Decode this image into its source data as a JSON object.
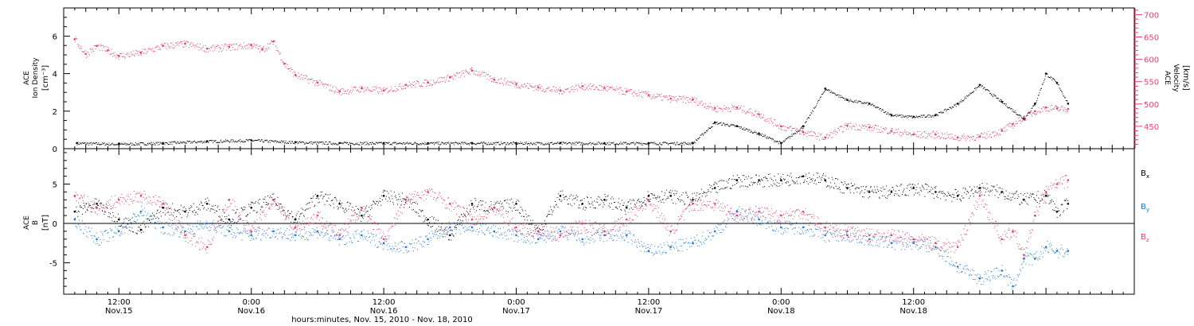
{
  "chart_data": [
    {
      "panel": "plasma",
      "type": "scatter",
      "x_unit": "hours since Nov.15 00:00 UTC",
      "ylabel_line1": "ACE",
      "ylabel_line2": "Ion Density",
      "ylabel_unit": "[cm⁻³]",
      "ylim": [
        0,
        7.5
      ],
      "yticks": [
        "0",
        "2",
        "4",
        "6"
      ],
      "y2label_line1": "ACE",
      "y2label_line2": "Velocity",
      "y2label_unit": "[km/s]",
      "y2lim": [
        400,
        715
      ],
      "y2ticks": [
        "450",
        "500",
        "550",
        "600",
        "650",
        "700"
      ],
      "series": [
        {
          "name": "Ion Density",
          "color": "#000000",
          "axis": "left",
          "x": [
            8.2,
            12,
            16,
            20,
            24,
            28,
            32,
            36,
            40,
            44,
            48,
            52,
            56,
            60,
            64,
            66,
            68,
            70,
            72,
            74,
            76,
            78,
            80,
            82,
            84,
            86,
            88,
            90,
            92,
            94,
            95,
            96,
            97,
            98
          ],
          "y": [
            0.3,
            0.25,
            0.3,
            0.4,
            0.45,
            0.35,
            0.3,
            0.3,
            0.3,
            0.3,
            0.3,
            0.3,
            0.3,
            0.3,
            0.3,
            1.4,
            1.2,
            0.8,
            0.3,
            1.2,
            3.2,
            2.6,
            2.4,
            1.8,
            1.7,
            1.8,
            2.4,
            3.4,
            2.5,
            1.6,
            2.4,
            4.0,
            3.5,
            2.4
          ]
        },
        {
          "name": "Velocity",
          "color": "#e83e6c",
          "axis": "right",
          "x": [
            8,
            9,
            10,
            11,
            12,
            14,
            16,
            18,
            20,
            22,
            24,
            25,
            26,
            27,
            28,
            30,
            32,
            34,
            36,
            38,
            40,
            42,
            44,
            46,
            48,
            50,
            52,
            54,
            56,
            58,
            60,
            62,
            64,
            66,
            68,
            70,
            72,
            74,
            76,
            78,
            80,
            82,
            84,
            86,
            88,
            90,
            92,
            93,
            94,
            95,
            96,
            97,
            98
          ],
          "y": [
            645,
            612,
            630,
            620,
            608,
            615,
            630,
            635,
            624,
            628,
            632,
            622,
            640,
            590,
            565,
            548,
            528,
            535,
            530,
            543,
            548,
            560,
            575,
            555,
            545,
            537,
            530,
            540,
            536,
            528,
            520,
            512,
            510,
            490,
            492,
            477,
            450,
            437,
            425,
            452,
            448,
            440,
            432,
            432,
            425,
            427,
            440,
            455,
            470,
            484,
            492,
            490,
            489
          ]
        }
      ]
    },
    {
      "panel": "magnetic-field",
      "type": "scatter",
      "x_unit": "hours since Nov.15 00:00 UTC",
      "ylabel_line1": "ACE",
      "ylabel_line2": "B",
      "ylabel_unit": "[nT]",
      "ylim": [
        -9,
        9.5
      ],
      "yticks": [
        "-5",
        "0",
        "5"
      ],
      "series": [
        {
          "name": "B",
          "subscript": "x",
          "color": "#000000",
          "x": [
            8,
            10,
            12,
            14,
            16,
            18,
            20,
            22,
            24,
            26,
            28,
            30,
            32,
            34,
            36,
            38,
            40,
            42,
            44,
            46,
            48,
            50,
            52,
            54,
            56,
            58,
            60,
            62,
            64,
            66,
            68,
            70,
            72,
            74,
            76,
            78,
            80,
            82,
            84,
            86,
            88,
            90,
            92,
            94,
            96,
            97,
            98
          ],
          "y": [
            1.5,
            2.5,
            0.5,
            -0.8,
            2.0,
            1.5,
            2.5,
            0.5,
            2.0,
            3.0,
            0.5,
            3.5,
            2.5,
            1.0,
            3.5,
            3.0,
            0.5,
            -1.5,
            2.5,
            2.0,
            2.5,
            -1.0,
            3.5,
            2.5,
            3.0,
            2.0,
            3.5,
            3.5,
            3.0,
            4.5,
            5.5,
            5.5,
            5.5,
            6.0,
            5.5,
            4.5,
            4.0,
            4.0,
            4.5,
            4.0,
            3.5,
            4.5,
            4.0,
            3.0,
            3.5,
            1.5,
            2.5
          ]
        },
        {
          "name": "B",
          "subscript": "y",
          "color": "#1e78d6",
          "x": [
            8,
            10,
            12,
            14,
            16,
            18,
            20,
            22,
            24,
            26,
            28,
            30,
            32,
            34,
            36,
            38,
            40,
            42,
            44,
            46,
            48,
            50,
            52,
            54,
            56,
            58,
            60,
            62,
            64,
            66,
            68,
            70,
            72,
            74,
            76,
            78,
            80,
            82,
            84,
            86,
            88,
            90,
            92,
            93,
            94,
            95,
            96,
            97,
            98
          ],
          "y": [
            0.5,
            -2.0,
            -1.0,
            1.5,
            -0.5,
            -1.0,
            0.0,
            -1.0,
            -1.5,
            -1.0,
            -1.5,
            -1.0,
            -2.0,
            -1.5,
            -2.5,
            -3.0,
            -2.0,
            -0.5,
            -0.5,
            -1.0,
            -1.5,
            -2.0,
            -1.0,
            -2.0,
            -1.5,
            -1.5,
            -3.5,
            -3.0,
            -2.5,
            -1.0,
            1.5,
            0.5,
            -0.5,
            -0.5,
            -1.5,
            -1.5,
            -2.0,
            -2.5,
            -2.5,
            -3.0,
            -5.5,
            -7.0,
            -6.0,
            -8.0,
            -4.5,
            -4.5,
            -3.0,
            -3.5,
            -3.5
          ]
        },
        {
          "name": "B",
          "subscript": "z",
          "color": "#e83e6c",
          "x": [
            8,
            10,
            12,
            14,
            16,
            18,
            20,
            22,
            24,
            26,
            28,
            30,
            32,
            34,
            36,
            38,
            40,
            42,
            44,
            46,
            48,
            50,
            52,
            54,
            56,
            58,
            60,
            62,
            64,
            66,
            68,
            70,
            72,
            74,
            76,
            78,
            80,
            82,
            84,
            86,
            88,
            90,
            92,
            93,
            94,
            95,
            96,
            97,
            98
          ],
          "y": [
            3.5,
            2.0,
            3.0,
            3.5,
            2.5,
            -1.5,
            -3.0,
            3.0,
            -1.0,
            3.0,
            -0.5,
            1.0,
            -1.5,
            2.0,
            -2.0,
            3.0,
            4.0,
            2.5,
            0.5,
            2.0,
            -0.5,
            -1.0,
            -1.5,
            0.0,
            -1.0,
            0.5,
            3.0,
            -1.0,
            2.5,
            2.5,
            1.0,
            1.5,
            1.0,
            1.5,
            -0.5,
            -1.0,
            -1.5,
            -1.5,
            -2.0,
            -2.5,
            -3.0,
            3.5,
            -2.0,
            -1.0,
            -4.0,
            1.0,
            4.0,
            5.0,
            5.5
          ]
        }
      ]
    }
  ],
  "x_axis": {
    "min": 7,
    "max": 104,
    "major_ticks": [
      {
        "at": 12,
        "time": "12:00",
        "date": "Nov.15"
      },
      {
        "at": 24,
        "time": "0:00",
        "date": "Nov.16"
      },
      {
        "at": 36,
        "time": "12:00",
        "date": "Nov.16"
      },
      {
        "at": 48,
        "time": "0:00",
        "date": "Nov.17"
      },
      {
        "at": 60,
        "time": "12:00",
        "date": "Nov.17"
      },
      {
        "at": 72,
        "time": "0:00",
        "date": "Nov.18"
      },
      {
        "at": 84,
        "time": "12:00",
        "date": "Nov.18"
      }
    ],
    "title": "hours:minutes, Nov. 15, 2010 - Nov. 18, 2010"
  },
  "colors": {
    "axis": "#000000",
    "velocity": "#e83e6c",
    "by": "#1e78d6",
    "bz": "#e83e6c"
  }
}
